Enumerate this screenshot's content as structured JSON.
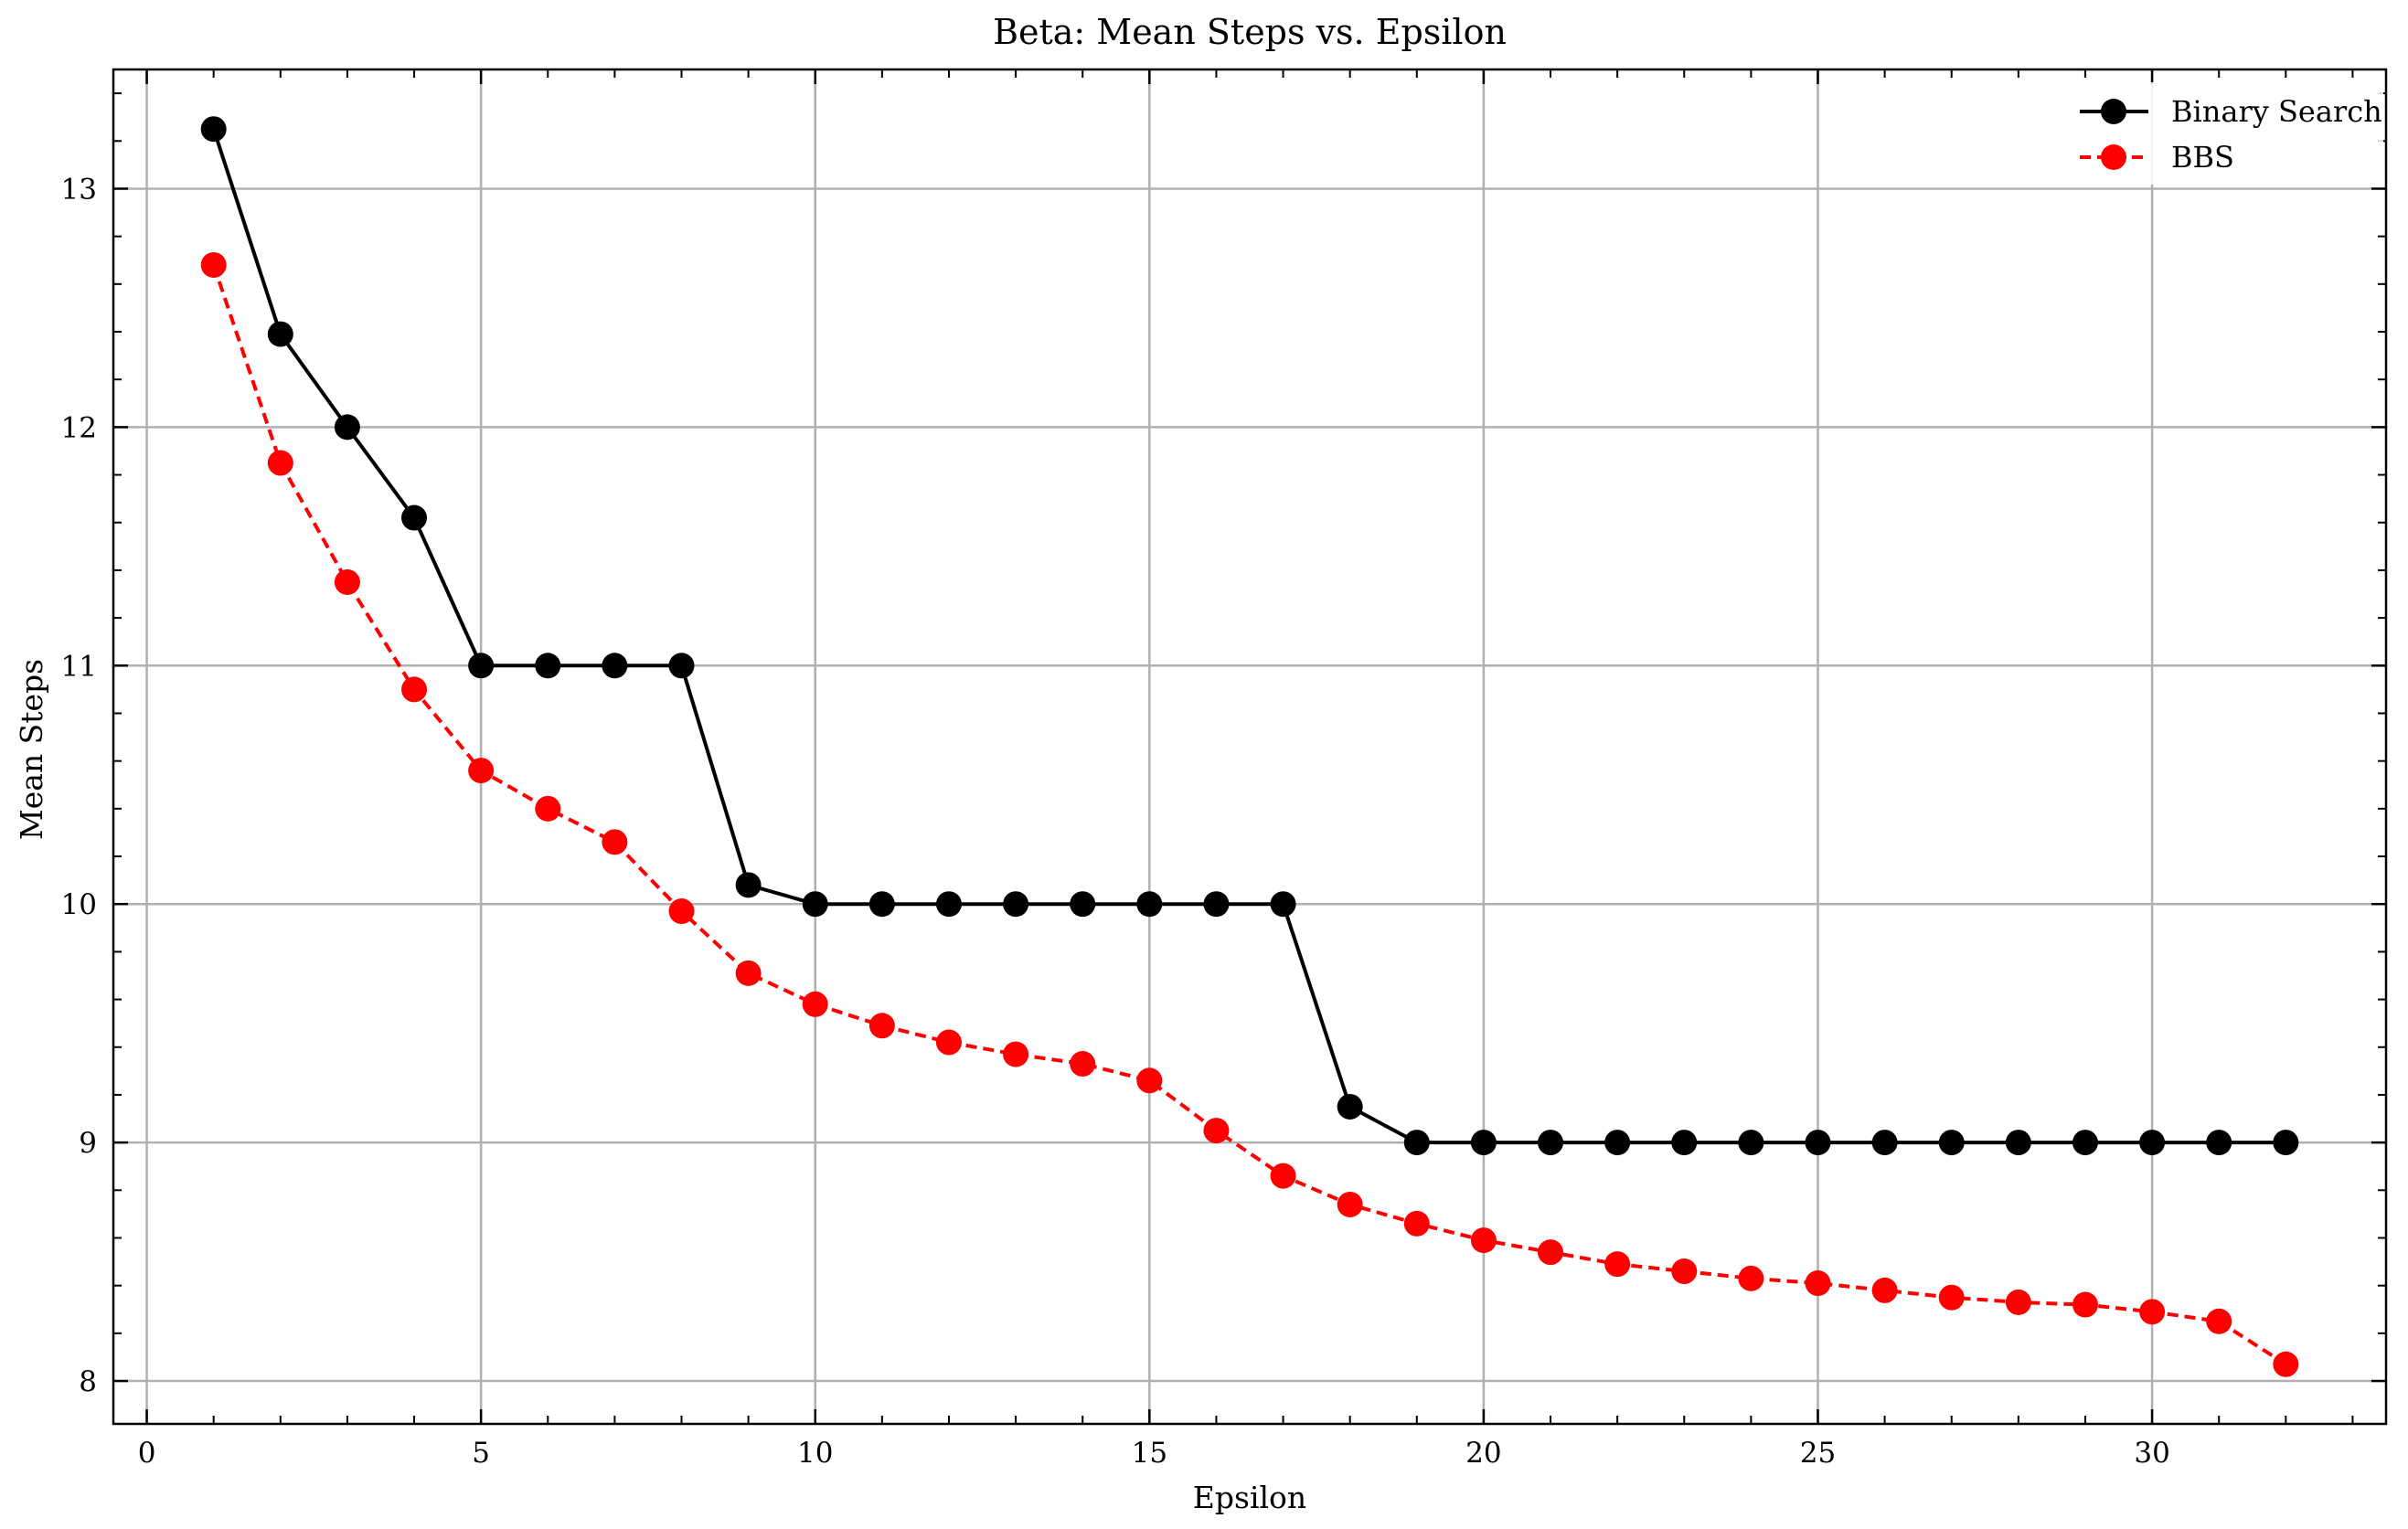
{
  "chart_data": {
    "type": "line",
    "title": "Beta: Mean Steps vs. Epsilon",
    "xlabel": "Epsilon",
    "ylabel": "Mean Steps",
    "xlim": [
      -0.5,
      33.5
    ],
    "ylim": [
      7.82,
      13.5
    ],
    "xticks": [
      0,
      5,
      10,
      15,
      20,
      25,
      30
    ],
    "yticks": [
      8,
      9,
      10,
      11,
      12,
      13
    ],
    "grid": true,
    "legend_position": "top-right",
    "x": [
      1,
      2,
      3,
      4,
      5,
      6,
      7,
      8,
      9,
      10,
      11,
      12,
      13,
      14,
      15,
      16,
      17,
      18,
      19,
      20,
      21,
      22,
      23,
      24,
      25,
      26,
      27,
      28,
      29,
      30,
      31,
      32
    ],
    "series": [
      {
        "name": "Binary Search",
        "color": "#000000",
        "line_style": "solid",
        "marker": "circle",
        "values": [
          13.25,
          12.39,
          12.0,
          11.62,
          11.0,
          11.0,
          11.0,
          11.0,
          10.08,
          10.0,
          10.0,
          10.0,
          10.0,
          10.0,
          10.0,
          10.0,
          10.0,
          9.15,
          9.0,
          9.0,
          9.0,
          9.0,
          9.0,
          9.0,
          9.0,
          9.0,
          9.0,
          9.0,
          9.0,
          9.0,
          9.0,
          9.0
        ]
      },
      {
        "name": "BBS",
        "color": "#ff0000",
        "line_style": "dashed",
        "marker": "circle",
        "values": [
          12.68,
          11.85,
          11.35,
          10.9,
          10.56,
          10.4,
          10.26,
          9.97,
          9.71,
          9.58,
          9.49,
          9.42,
          9.37,
          9.33,
          9.26,
          9.05,
          8.86,
          8.74,
          8.66,
          8.59,
          8.54,
          8.49,
          8.46,
          8.43,
          8.41,
          8.38,
          8.35,
          8.33,
          8.32,
          8.29,
          8.25,
          8.07
        ]
      }
    ]
  }
}
